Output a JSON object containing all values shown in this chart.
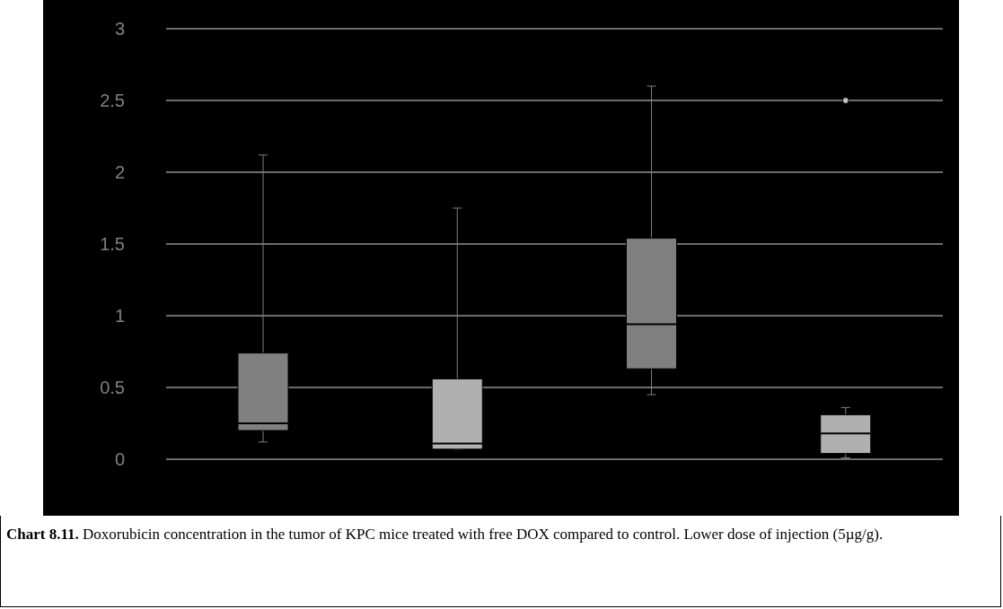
{
  "chart_data": {
    "type": "box",
    "title": "Chart 8.11.",
    "annotations": [
      "Doxorubicin concentration in the tumor of KPC mice treated with free DOX compared to control. Lower dose of injection (5µg/g)."
    ],
    "categories": [
      null,
      null,
      null,
      null
    ],
    "colors": [
      "#808080",
      "#b0b0b0",
      "#808080",
      "#b0b0b0"
    ],
    "boxes": [
      {
        "low": 0.12,
        "q1": 0.2,
        "median": 0.25,
        "q3": 0.74,
        "high": 2.12
      },
      {
        "low": 0.07,
        "q1": 0.07,
        "median": 0.11,
        "q3": 0.56,
        "high": 1.75
      },
      {
        "low": 0.45,
        "q1": 0.63,
        "median": 0.94,
        "q3": 1.54,
        "high": 2.6
      },
      {
        "low": 0.01,
        "q1": 0.04,
        "median": 0.18,
        "q3": 0.31,
        "high": 0.36,
        "outliers": [
          2.5
        ]
      }
    ],
    "ylim": [
      0,
      3
    ],
    "yticks": [
      0,
      0.5,
      1,
      1.5,
      2,
      2.5,
      3
    ],
    "grid": "y"
  }
}
